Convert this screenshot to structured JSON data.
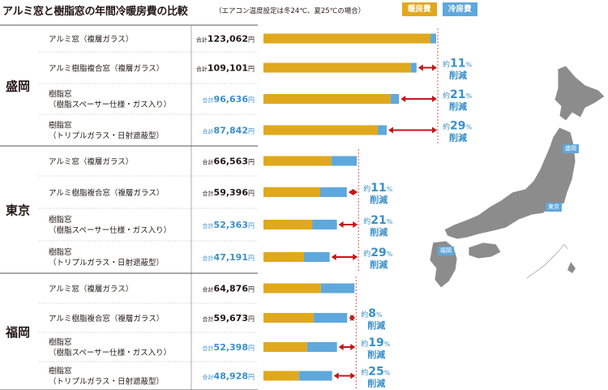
{
  "header": {
    "title": "アルミ窓と樹脂窓の年間冷暖房費の比較",
    "subtitle": "（エアコン温度設定は冬24℃、夏25℃の場合）"
  },
  "legend": [
    {
      "label": "暖房費",
      "color": "#e0a81c"
    },
    {
      "label": "冷房費",
      "color": "#5fa8dc"
    }
  ],
  "colors": {
    "heating": "#e0a81c",
    "cooling": "#5fa8dc",
    "arrow": "#c4161c",
    "reduction_text": "#3a8fc9",
    "refline": "#e0453a"
  },
  "map": {
    "cities": [
      "盛岡",
      "東京",
      "福岡"
    ]
  },
  "chart_data": {
    "type": "bar",
    "stacked": true,
    "orientation": "horizontal",
    "title": "アルミ窓と樹脂窓の年間冷暖房費の比較",
    "series_names": [
      "暖房費",
      "冷房費"
    ],
    "total_prefix": "合計",
    "total_suffix": "円",
    "reduction_prefix": "約",
    "reduction_unit": "%",
    "reduction_suffix": "削減",
    "groups": [
      {
        "region": "盛岡",
        "rows": [
          {
            "line1": "アルミ窓（複層ガラス）",
            "line2": "",
            "total": "123,062",
            "heating": 119000,
            "cooling": 4062,
            "reduction": null
          },
          {
            "line1": "アルミ樹脂複合窓（複層ガラス）",
            "line2": "",
            "total": "109,101",
            "heating": 105000,
            "cooling": 4101,
            "reduction": 11
          },
          {
            "line1": "樹脂窓",
            "line2": "（樹脂スペーサー仕様・ガス入り）",
            "total": "96,636",
            "heating": 90600,
            "cooling": 6036,
            "reduction": 21
          },
          {
            "line1": "樹脂窓",
            "line2": "（トリプルガラス・日射遮蔽型）",
            "total": "87,842",
            "heating": 81500,
            "cooling": 6342,
            "reduction": 29
          }
        ]
      },
      {
        "region": "東京",
        "rows": [
          {
            "line1": "アルミ窓（複層ガラス）",
            "line2": "",
            "total": "66,563",
            "heating": 48400,
            "cooling": 18163,
            "reduction": null
          },
          {
            "line1": "アルミ樹脂複合窓（複層ガラス）",
            "line2": "",
            "total": "59,396",
            "heating": 40400,
            "cooling": 18996,
            "reduction": 11
          },
          {
            "line1": "樹脂窓",
            "line2": "（樹脂スペーサー仕様・ガス入り）",
            "total": "52,363",
            "heating": 34700,
            "cooling": 17663,
            "reduction": 21
          },
          {
            "line1": "樹脂窓",
            "line2": "（トリプルガラス・日射遮蔽型）",
            "total": "47,191",
            "heating": 28800,
            "cooling": 18391,
            "reduction": 29
          }
        ]
      },
      {
        "region": "福岡",
        "rows": [
          {
            "line1": "アルミ窓（複層ガラス）",
            "line2": "",
            "total": "64,876",
            "heating": 40900,
            "cooling": 23976,
            "reduction": null
          },
          {
            "line1": "アルミ樹脂複合窓（複層ガラス）",
            "line2": "",
            "total": "59,673",
            "heating": 35700,
            "cooling": 23973,
            "reduction": 8
          },
          {
            "line1": "樹脂窓",
            "line2": "（樹脂スペーサー仕様・ガス入り）",
            "total": "52,398",
            "heating": 31100,
            "cooling": 21298,
            "reduction": 19
          },
          {
            "line1": "樹脂窓",
            "line2": "（トリプルガラス・日射遮蔽型）",
            "total": "48,928",
            "heating": 25300,
            "cooling": 23628,
            "reduction": 25
          }
        ]
      }
    ]
  }
}
